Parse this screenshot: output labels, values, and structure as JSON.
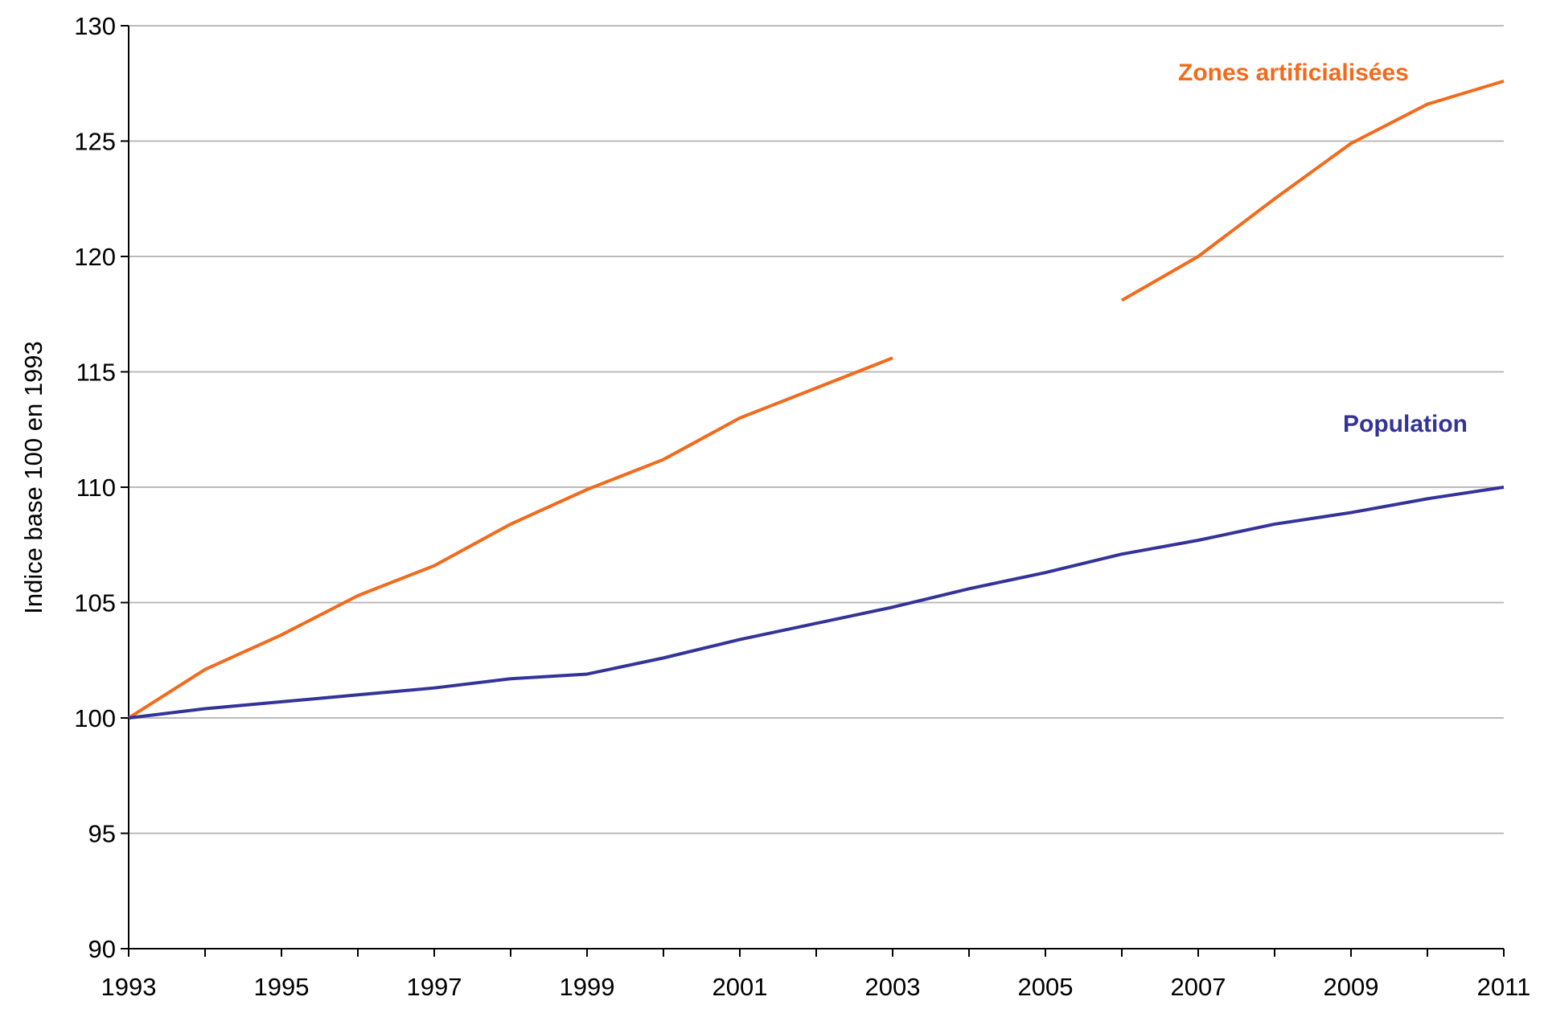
{
  "chart_data": {
    "type": "line",
    "y_label": "Indice base 100 en 1993",
    "x": [
      1993,
      1994,
      1995,
      1996,
      1997,
      1998,
      1999,
      2000,
      2001,
      2002,
      2003,
      2004,
      2005,
      2006,
      2007,
      2008,
      2009,
      2010,
      2011
    ],
    "series": [
      {
        "name": "Zones artificialisées",
        "color": "#f26a1b",
        "values": [
          100,
          102.1,
          103.6,
          105.3,
          106.6,
          108.4,
          109.9,
          111.2,
          113.0,
          114.3,
          115.6,
          null,
          null,
          118.1,
          120.0,
          122.5,
          124.9,
          126.6,
          127.6
        ]
      },
      {
        "name": "Population",
        "color": "#333399",
        "values": [
          100,
          100.4,
          100.7,
          101.0,
          101.3,
          101.7,
          101.9,
          102.6,
          103.4,
          104.1,
          104.8,
          105.6,
          106.3,
          107.1,
          107.7,
          108.4,
          108.9,
          109.5,
          110.0
        ]
      }
    ],
    "xlim": [
      1993,
      2011
    ],
    "xticks": [
      1993,
      1995,
      1997,
      1999,
      2001,
      2003,
      2005,
      2007,
      2009,
      2011
    ],
    "xminor_ticks": [
      1994,
      1996,
      1998,
      2000,
      2002,
      2004,
      2006,
      2008,
      2010
    ],
    "ylim": [
      90,
      130
    ],
    "yticks": [
      90,
      95,
      100,
      105,
      110,
      115,
      120,
      125,
      130
    ],
    "grid": true
  }
}
